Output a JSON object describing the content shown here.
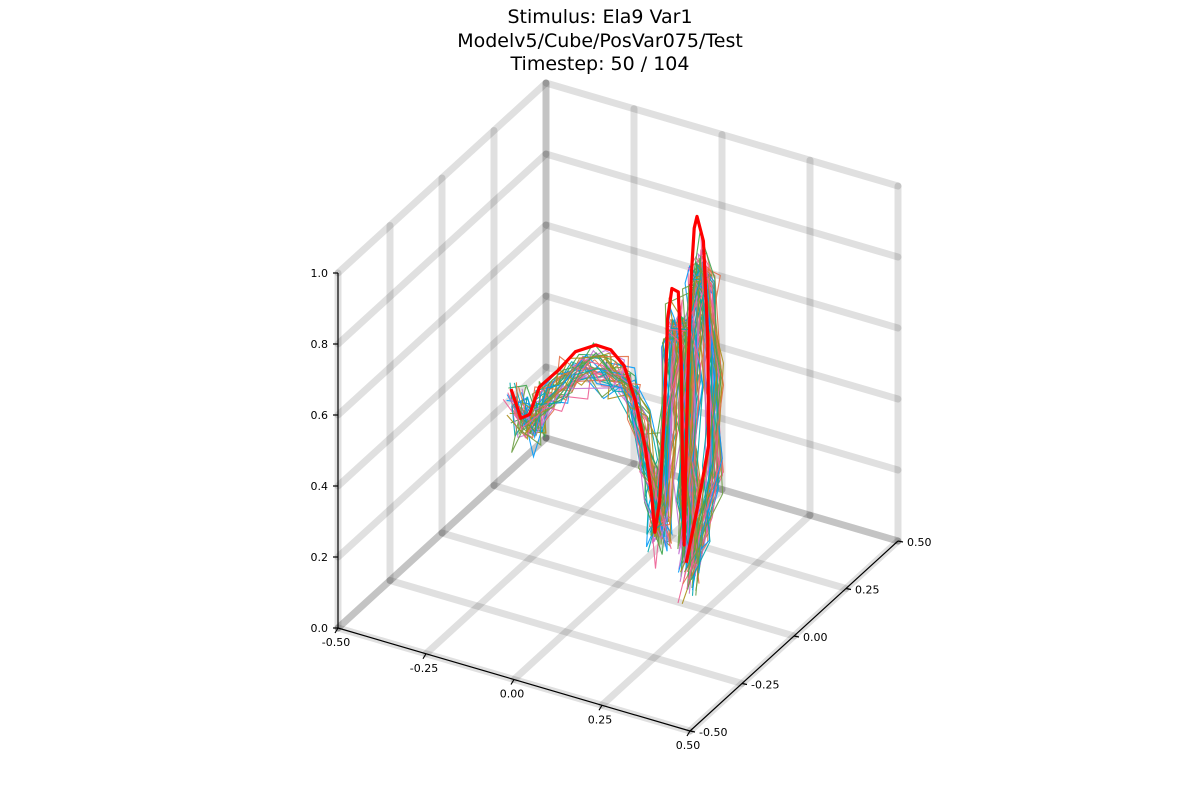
{
  "chart_data": {
    "type": "line",
    "title_lines": [
      "Stimulus: Ela9 Var1",
      "Modelv5/Cube/PosVar075/Test",
      "Timestep: 50 / 104"
    ],
    "xlabel": "",
    "ylabel": "",
    "zlabel": "",
    "xlim": [
      -0.5,
      0.5
    ],
    "ylim": [
      -0.5,
      0.5
    ],
    "zlim": [
      0.0,
      1.0
    ],
    "x_ticks": [
      "-0.50",
      "-0.25",
      "0.00",
      "0.25",
      "0.50"
    ],
    "y_ticks": [
      "-0.50",
      "-0.25",
      "0.00",
      "0.25",
      "0.50"
    ],
    "z_ticks": [
      "0.0",
      "0.2",
      "0.4",
      "0.6",
      "0.8",
      "1.0"
    ],
    "grid": true,
    "legend": "none",
    "ground_truth": {
      "color": "#ff0000",
      "points": [
        [
          -0.44,
          0.23,
          0.3
        ],
        [
          -0.4,
          0.21,
          0.24
        ],
        [
          -0.34,
          0.15,
          0.3
        ],
        [
          -0.3,
          0.13,
          0.4
        ],
        [
          -0.24,
          0.12,
          0.47
        ],
        [
          -0.18,
          0.1,
          0.55
        ],
        [
          -0.11,
          0.08,
          0.6
        ],
        [
          -0.05,
          0.05,
          0.62
        ],
        [
          0.0,
          0.03,
          0.6
        ],
        [
          0.05,
          0.0,
          0.53
        ],
        [
          0.09,
          -0.02,
          0.42
        ],
        [
          0.12,
          -0.04,
          0.3
        ],
        [
          0.14,
          -0.06,
          0.22
        ],
        [
          0.16,
          -0.07,
          0.32
        ],
        [
          0.18,
          -0.08,
          0.6
        ],
        [
          0.2,
          -0.1,
          0.86
        ],
        [
          0.23,
          -0.13,
          0.97
        ],
        [
          0.26,
          -0.15,
          0.98
        ],
        [
          0.28,
          -0.17,
          0.8
        ],
        [
          0.29,
          -0.18,
          0.5
        ],
        [
          0.3,
          -0.19,
          0.3
        ],
        [
          0.31,
          -0.2,
          0.5
        ],
        [
          0.33,
          -0.22,
          0.85
        ],
        [
          0.35,
          -0.24,
          1.1
        ],
        [
          0.37,
          -0.26,
          1.25
        ],
        [
          0.39,
          -0.28,
          1.3
        ],
        [
          0.42,
          -0.3,
          1.25
        ],
        [
          0.45,
          -0.33,
          1.0
        ],
        [
          0.47,
          -0.36,
          0.72
        ],
        [
          0.45,
          -0.38,
          0.55
        ],
        [
          0.43,
          -0.4,
          0.4
        ]
      ]
    },
    "predictions": {
      "count": 40,
      "colors": [
        "#009af9",
        "#e26f46",
        "#3da44d",
        "#c271d2",
        "#ac8e18",
        "#00a9ad",
        "#ed5e93",
        "#6b9f41"
      ]
    }
  }
}
